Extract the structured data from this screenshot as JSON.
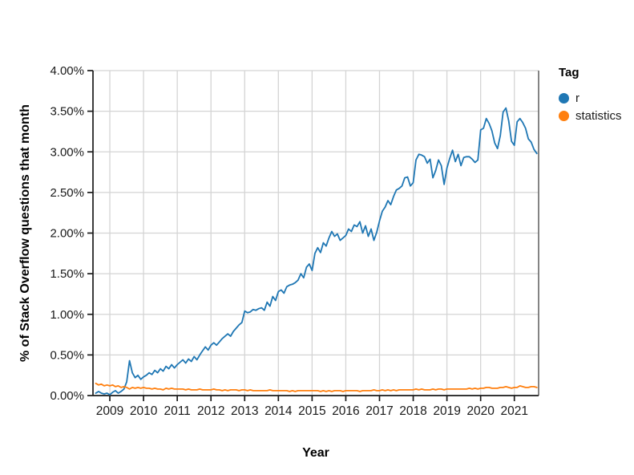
{
  "chart_data": {
    "type": "line",
    "title": "",
    "xlabel": "Year",
    "ylabel": "% of Stack Overflow questions that month",
    "legend_title": "Tag",
    "legend_position": "right",
    "grid": true,
    "xlim": [
      2008.5,
      2021.72
    ],
    "ylim": [
      0,
      4
    ],
    "x_ticks": [
      2009,
      2010,
      2011,
      2012,
      2013,
      2014,
      2015,
      2016,
      2017,
      2018,
      2019,
      2020,
      2021
    ],
    "x_tick_labels": [
      "2009",
      "2010",
      "2011",
      "2012",
      "2013",
      "2014",
      "2015",
      "2016",
      "2017",
      "2018",
      "2019",
      "2020",
      "2021"
    ],
    "y_ticks": [
      0,
      0.5,
      1.0,
      1.5,
      2.0,
      2.5,
      3.0,
      3.5,
      4.0
    ],
    "y_tick_labels": [
      "0.00%",
      "0.50%",
      "1.00%",
      "1.50%",
      "2.00%",
      "2.50%",
      "3.00%",
      "3.50%",
      "4.00%"
    ],
    "x_start": 2008.5833,
    "x_step": 0.083333,
    "x_unit": "month",
    "colors": {
      "grid": "#d4d4d4",
      "axis": "#1a1a1a",
      "text": "#1a1a1a",
      "border": "#666666"
    },
    "series": [
      {
        "name": "r",
        "color": "#1f77b4",
        "values": [
          0.03,
          0.05,
          0.03,
          0.02,
          0.03,
          0.01,
          0.04,
          0.06,
          0.03,
          0.05,
          0.08,
          0.17,
          0.43,
          0.28,
          0.22,
          0.25,
          0.2,
          0.23,
          0.25,
          0.28,
          0.26,
          0.31,
          0.28,
          0.33,
          0.3,
          0.36,
          0.33,
          0.38,
          0.34,
          0.38,
          0.41,
          0.44,
          0.4,
          0.45,
          0.42,
          0.48,
          0.44,
          0.5,
          0.55,
          0.6,
          0.56,
          0.62,
          0.65,
          0.62,
          0.66,
          0.7,
          0.73,
          0.76,
          0.73,
          0.79,
          0.83,
          0.87,
          0.9,
          1.04,
          1.02,
          1.03,
          1.06,
          1.05,
          1.07,
          1.08,
          1.05,
          1.15,
          1.1,
          1.22,
          1.17,
          1.28,
          1.3,
          1.26,
          1.34,
          1.36,
          1.37,
          1.39,
          1.42,
          1.5,
          1.45,
          1.58,
          1.62,
          1.54,
          1.75,
          1.82,
          1.76,
          1.88,
          1.84,
          1.94,
          2.02,
          1.96,
          1.99,
          1.91,
          1.94,
          1.97,
          2.05,
          2.02,
          2.1,
          2.08,
          2.14,
          2.0,
          2.09,
          1.96,
          2.05,
          1.91,
          2.01,
          2.15,
          2.27,
          2.32,
          2.4,
          2.35,
          2.45,
          2.53,
          2.55,
          2.58,
          2.68,
          2.69,
          2.58,
          2.62,
          2.9,
          2.97,
          2.96,
          2.94,
          2.86,
          2.91,
          2.68,
          2.77,
          2.9,
          2.83,
          2.6,
          2.8,
          2.92,
          3.02,
          2.88,
          2.97,
          2.83,
          2.93,
          2.94,
          2.94,
          2.91,
          2.87,
          2.9,
          3.27,
          3.29,
          3.41,
          3.35,
          3.26,
          3.11,
          3.04,
          3.2,
          3.49,
          3.54,
          3.38,
          3.13,
          3.08,
          3.37,
          3.41,
          3.36,
          3.29,
          3.16,
          3.12,
          3.03,
          2.98
        ]
      },
      {
        "name": "statistics",
        "color": "#ff7f0e",
        "values": [
          0.15,
          0.13,
          0.14,
          0.12,
          0.13,
          0.12,
          0.13,
          0.11,
          0.12,
          0.1,
          0.11,
          0.1,
          0.08,
          0.1,
          0.09,
          0.1,
          0.09,
          0.1,
          0.09,
          0.09,
          0.08,
          0.09,
          0.08,
          0.08,
          0.07,
          0.09,
          0.08,
          0.09,
          0.08,
          0.08,
          0.08,
          0.08,
          0.07,
          0.08,
          0.07,
          0.07,
          0.07,
          0.08,
          0.07,
          0.07,
          0.07,
          0.07,
          0.08,
          0.07,
          0.07,
          0.06,
          0.07,
          0.06,
          0.07,
          0.07,
          0.07,
          0.06,
          0.07,
          0.07,
          0.06,
          0.07,
          0.06,
          0.06,
          0.06,
          0.06,
          0.06,
          0.06,
          0.07,
          0.06,
          0.06,
          0.06,
          0.06,
          0.06,
          0.06,
          0.05,
          0.06,
          0.05,
          0.06,
          0.06,
          0.06,
          0.06,
          0.06,
          0.06,
          0.06,
          0.06,
          0.05,
          0.06,
          0.05,
          0.06,
          0.05,
          0.06,
          0.06,
          0.06,
          0.05,
          0.06,
          0.06,
          0.06,
          0.06,
          0.06,
          0.05,
          0.06,
          0.06,
          0.06,
          0.06,
          0.07,
          0.06,
          0.06,
          0.07,
          0.06,
          0.07,
          0.06,
          0.07,
          0.06,
          0.07,
          0.07,
          0.07,
          0.07,
          0.07,
          0.07,
          0.08,
          0.07,
          0.08,
          0.07,
          0.07,
          0.07,
          0.08,
          0.07,
          0.08,
          0.08,
          0.07,
          0.08,
          0.08,
          0.08,
          0.08,
          0.08,
          0.08,
          0.08,
          0.08,
          0.09,
          0.08,
          0.09,
          0.08,
          0.09,
          0.09,
          0.1,
          0.1,
          0.09,
          0.09,
          0.09,
          0.1,
          0.1,
          0.11,
          0.1,
          0.09,
          0.1,
          0.1,
          0.12,
          0.11,
          0.1,
          0.1,
          0.11,
          0.11,
          0.1
        ]
      }
    ]
  }
}
